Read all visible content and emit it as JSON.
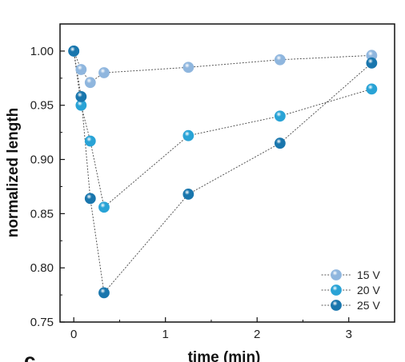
{
  "chart_data": {
    "type": "scatter",
    "xlabel": "time (min)",
    "ylabel": "normalized length",
    "panel_label": "c",
    "xlim": [
      -0.15,
      3.5
    ],
    "ylim": [
      0.75,
      1.025
    ],
    "xticks": [
      0,
      1,
      2,
      3
    ],
    "yticks": [
      0.75,
      0.8,
      0.85,
      0.9,
      0.95,
      1.0
    ],
    "xtick_labels": [
      "0",
      "1",
      "2",
      "3"
    ],
    "ytick_labels": [
      "0.75",
      "0.80",
      "0.85",
      "0.90",
      "0.95",
      "1.00"
    ],
    "legend_position": "bottom-right",
    "line_style": "dotted",
    "series": [
      {
        "name": "15 V",
        "color": "#8fb6de",
        "x": [
          0,
          0.08,
          0.18,
          0.33,
          1.25,
          2.25,
          3.25
        ],
        "y": [
          1.0,
          0.983,
          0.971,
          0.98,
          0.985,
          0.992,
          0.996
        ]
      },
      {
        "name": "20 V",
        "color": "#29a3d6",
        "x": [
          0,
          0.08,
          0.18,
          0.33,
          1.25,
          2.25,
          3.25
        ],
        "y": [
          1.0,
          0.95,
          0.917,
          0.856,
          0.922,
          0.94,
          0.965
        ]
      },
      {
        "name": "25 V",
        "color": "#1976ad",
        "x": [
          0,
          0.08,
          0.18,
          0.33,
          1.25,
          2.25,
          3.25
        ],
        "y": [
          1.0,
          0.958,
          0.864,
          0.777,
          0.868,
          0.915,
          0.989
        ]
      }
    ]
  }
}
